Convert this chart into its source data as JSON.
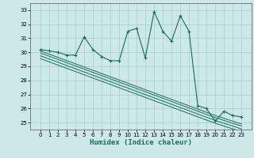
{
  "xlabel": "Humidex (Indice chaleur)",
  "bg_color": "#cce8e8",
  "grid_color": "#aacccc",
  "line_color": "#1a6b5a",
  "x": [
    0,
    1,
    2,
    3,
    4,
    5,
    6,
    7,
    8,
    9,
    10,
    11,
    12,
    13,
    14,
    15,
    16,
    17,
    18,
    19,
    20,
    21,
    22,
    23
  ],
  "y_main": [
    30.2,
    30.1,
    30.0,
    29.8,
    29.8,
    31.1,
    30.2,
    29.7,
    29.4,
    29.4,
    31.5,
    31.7,
    29.6,
    32.9,
    31.5,
    30.8,
    32.6,
    31.5,
    26.2,
    26.0,
    25.1,
    25.8,
    25.5,
    25.4
  ],
  "y_line1": [
    30.1,
    29.87,
    29.64,
    29.41,
    29.18,
    28.95,
    28.72,
    28.49,
    28.26,
    28.03,
    27.8,
    27.57,
    27.34,
    27.11,
    26.88,
    26.65,
    26.42,
    26.19,
    25.96,
    25.73,
    25.5,
    25.3,
    25.1,
    24.9
  ],
  "y_line2": [
    29.95,
    29.72,
    29.49,
    29.26,
    29.03,
    28.8,
    28.57,
    28.34,
    28.11,
    27.88,
    27.65,
    27.42,
    27.19,
    26.96,
    26.73,
    26.5,
    26.27,
    26.04,
    25.81,
    25.58,
    25.35,
    25.15,
    24.95,
    24.75
  ],
  "y_line3": [
    29.75,
    29.52,
    29.29,
    29.06,
    28.83,
    28.6,
    28.37,
    28.14,
    27.91,
    27.68,
    27.45,
    27.22,
    26.99,
    26.76,
    26.53,
    26.3,
    26.07,
    25.84,
    25.61,
    25.38,
    25.15,
    24.95,
    24.75,
    24.55
  ],
  "y_line4": [
    29.55,
    29.32,
    29.09,
    28.86,
    28.63,
    28.4,
    28.17,
    27.94,
    27.71,
    27.48,
    27.25,
    27.02,
    26.79,
    26.56,
    26.33,
    26.1,
    25.87,
    25.64,
    25.41,
    25.18,
    24.95,
    24.75,
    24.55,
    24.35
  ],
  "ylim": [
    24.5,
    33.5
  ],
  "yticks": [
    25,
    26,
    27,
    28,
    29,
    30,
    31,
    32,
    33
  ],
  "xticks": [
    0,
    1,
    2,
    3,
    4,
    5,
    6,
    7,
    8,
    9,
    10,
    11,
    12,
    13,
    14,
    15,
    16,
    17,
    18,
    19,
    20,
    21,
    22,
    23
  ],
  "tick_fontsize": 5.0,
  "label_fontsize": 6.5
}
